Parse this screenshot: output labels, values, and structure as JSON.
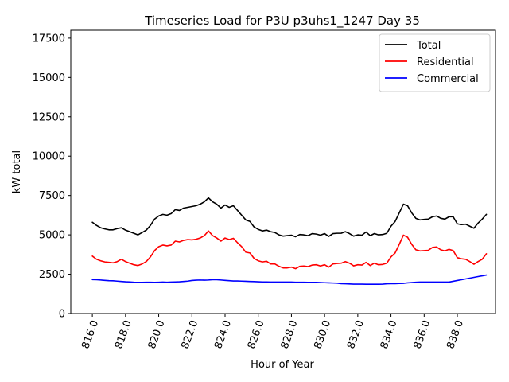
{
  "chart_data": {
    "type": "line",
    "title": "Timeseries Load for P3U p3uhs1_1247  Day 35",
    "xlabel": "Hour of Year",
    "ylabel": "kW total",
    "xlim": [
      814.7,
      840.3
    ],
    "ylim": [
      0,
      18000
    ],
    "xticks": [
      816,
      818,
      820,
      822,
      824,
      826,
      828,
      830,
      832,
      834,
      836,
      838
    ],
    "xtick_labels": [
      "816.0",
      "818.0",
      "820.0",
      "822.0",
      "824.0",
      "826.0",
      "828.0",
      "830.0",
      "832.0",
      "834.0",
      "836.0",
      "838.0"
    ],
    "yticks": [
      0,
      2500,
      5000,
      7500,
      10000,
      12500,
      15000,
      17500
    ],
    "ytick_labels": [
      "0",
      "2500",
      "5000",
      "7500",
      "10000",
      "12500",
      "15000",
      "17500"
    ],
    "legend_position": "top-right",
    "x": [
      816.0,
      816.25,
      816.5,
      816.75,
      817.0,
      817.25,
      817.5,
      817.75,
      818.0,
      818.25,
      818.5,
      818.75,
      819.0,
      819.25,
      819.5,
      819.75,
      820.0,
      820.25,
      820.5,
      820.75,
      821.0,
      821.25,
      821.5,
      821.75,
      822.0,
      822.25,
      822.5,
      822.75,
      823.0,
      823.25,
      823.5,
      823.75,
      824.0,
      824.25,
      824.5,
      824.75,
      825.0,
      825.25,
      825.5,
      825.75,
      826.0,
      826.25,
      826.5,
      826.75,
      827.0,
      827.25,
      827.5,
      827.75,
      828.0,
      828.25,
      828.5,
      828.75,
      829.0,
      829.25,
      829.5,
      829.75,
      830.0,
      830.25,
      830.5,
      830.75,
      831.0,
      831.25,
      831.5,
      831.75,
      832.0,
      832.25,
      832.5,
      832.75,
      833.0,
      833.25,
      833.5,
      833.75,
      834.0,
      834.25,
      834.5,
      834.75,
      835.0,
      835.25,
      835.5,
      835.75,
      836.0,
      836.25,
      836.5,
      836.75,
      837.0,
      837.25,
      837.5,
      837.75,
      838.0,
      838.25,
      838.5,
      838.75,
      839.0,
      839.25,
      839.5,
      839.75
    ],
    "series": [
      {
        "name": "Total",
        "color": "#000000",
        "values": [
          5800,
          5600,
          5450,
          5380,
          5320,
          5320,
          5400,
          5450,
          5300,
          5200,
          5100,
          5000,
          5150,
          5300,
          5600,
          6000,
          6200,
          6300,
          6250,
          6350,
          6600,
          6550,
          6700,
          6750,
          6800,
          6850,
          6950,
          7100,
          7350,
          7100,
          6950,
          6700,
          6900,
          6750,
          6850,
          6550,
          6250,
          5950,
          5850,
          5500,
          5350,
          5250,
          5300,
          5200,
          5150,
          5000,
          4920,
          4950,
          4980,
          4880,
          5020,
          5000,
          4950,
          5080,
          5050,
          4980,
          5080,
          4900,
          5080,
          5100,
          5100,
          5200,
          5080,
          4920,
          5000,
          4980,
          5180,
          4950,
          5080,
          5000,
          5020,
          5100,
          5550,
          5850,
          6400,
          6950,
          6850,
          6400,
          6050,
          5950,
          5980,
          6000,
          6150,
          6200,
          6050,
          6000,
          6150,
          6150,
          5700,
          5650,
          5680,
          5550,
          5420,
          5750,
          6000,
          6300
        ]
      },
      {
        "name": "Residential",
        "color": "#ff0000",
        "values": [
          3650,
          3450,
          3350,
          3280,
          3250,
          3220,
          3300,
          3450,
          3300,
          3200,
          3100,
          3050,
          3150,
          3300,
          3600,
          4000,
          4250,
          4350,
          4300,
          4350,
          4600,
          4550,
          4650,
          4700,
          4680,
          4720,
          4800,
          4950,
          5250,
          4950,
          4800,
          4600,
          4800,
          4700,
          4780,
          4500,
          4250,
          3900,
          3850,
          3500,
          3350,
          3280,
          3320,
          3150,
          3150,
          3000,
          2900,
          2900,
          2950,
          2850,
          3000,
          3020,
          2980,
          3080,
          3100,
          3020,
          3100,
          2950,
          3150,
          3180,
          3200,
          3300,
          3200,
          3030,
          3100,
          3080,
          3250,
          3050,
          3200,
          3100,
          3120,
          3200,
          3600,
          3850,
          4400,
          4980,
          4850,
          4400,
          4050,
          3980,
          4000,
          4020,
          4200,
          4230,
          4050,
          3980,
          4080,
          4000,
          3550,
          3480,
          3450,
          3300,
          3130,
          3300,
          3450,
          3800
        ]
      },
      {
        "name": "Commercial",
        "color": "#0000ff",
        "values": [
          2160,
          2150,
          2130,
          2110,
          2090,
          2080,
          2060,
          2040,
          2020,
          2010,
          1990,
          1980,
          1980,
          1990,
          1990,
          1980,
          1990,
          2000,
          1990,
          2000,
          2010,
          2020,
          2040,
          2060,
          2100,
          2120,
          2130,
          2120,
          2130,
          2150,
          2150,
          2130,
          2110,
          2090,
          2070,
          2070,
          2060,
          2050,
          2040,
          2030,
          2020,
          2010,
          2010,
          2000,
          2000,
          2000,
          2000,
          2000,
          2000,
          1990,
          1990,
          1990,
          1980,
          1980,
          1980,
          1970,
          1960,
          1950,
          1940,
          1930,
          1900,
          1890,
          1880,
          1870,
          1870,
          1870,
          1860,
          1860,
          1860,
          1860,
          1870,
          1890,
          1900,
          1900,
          1910,
          1920,
          1950,
          1970,
          1990,
          2000,
          2000,
          2000,
          2000,
          2000,
          2000,
          2000,
          2000,
          2050,
          2100,
          2150,
          2200,
          2250,
          2300,
          2350,
          2400,
          2450
        ]
      }
    ]
  }
}
